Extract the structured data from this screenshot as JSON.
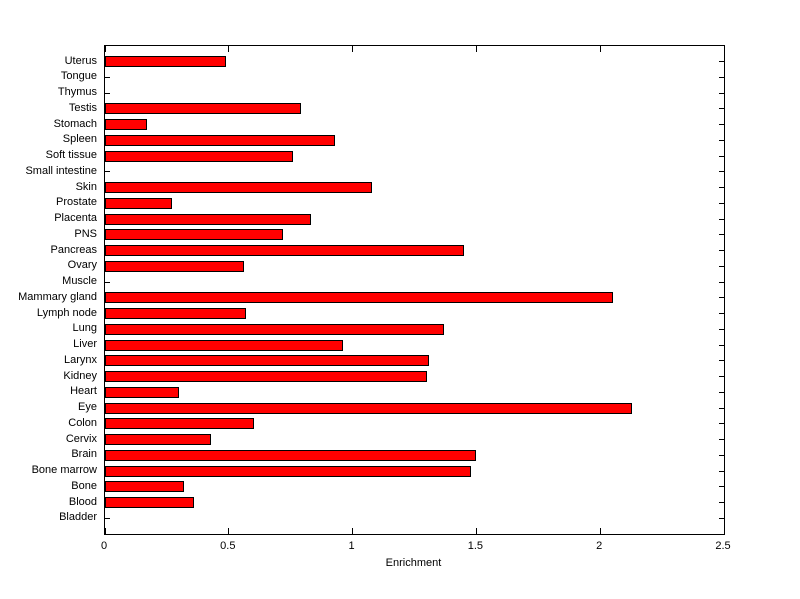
{
  "chart_data": {
    "type": "bar",
    "orientation": "horizontal",
    "title": "",
    "xlabel": "Enrichment",
    "ylabel": "",
    "xlim": [
      0,
      2.5
    ],
    "xticks": [
      0,
      0.5,
      1,
      1.5,
      2,
      2.5
    ],
    "xtick_labels": [
      "0",
      "0.5",
      "1",
      "1.5",
      "2",
      "2.5"
    ],
    "grid": false,
    "legend": false,
    "bar_color": "#ff0000",
    "bar_edge_color": "#000000",
    "axis_color": "#000000",
    "background_color": "#ffffff",
    "categories": [
      "Uterus",
      "Tongue",
      "Thymus",
      "Testis",
      "Stomach",
      "Spleen",
      "Soft tissue",
      "Small intestine",
      "Skin",
      "Prostate",
      "Placenta",
      "PNS",
      "Pancreas",
      "Ovary",
      "Muscle",
      "Mammary gland",
      "Lymph node",
      "Lung",
      "Liver",
      "Larynx",
      "Kidney",
      "Heart",
      "Eye",
      "Colon",
      "Cervix",
      "Brain",
      "Bone marrow",
      "Bone",
      "Blood",
      "Bladder"
    ],
    "values": [
      0.49,
      0,
      0,
      0.79,
      0.17,
      0.93,
      0.76,
      0,
      1.08,
      0.27,
      0.83,
      0.72,
      1.45,
      0.56,
      0,
      2.05,
      0.57,
      1.37,
      0.96,
      1.31,
      1.3,
      0.3,
      2.13,
      0.6,
      0.43,
      1.5,
      1.48,
      0.32,
      0.36,
      0
    ]
  }
}
